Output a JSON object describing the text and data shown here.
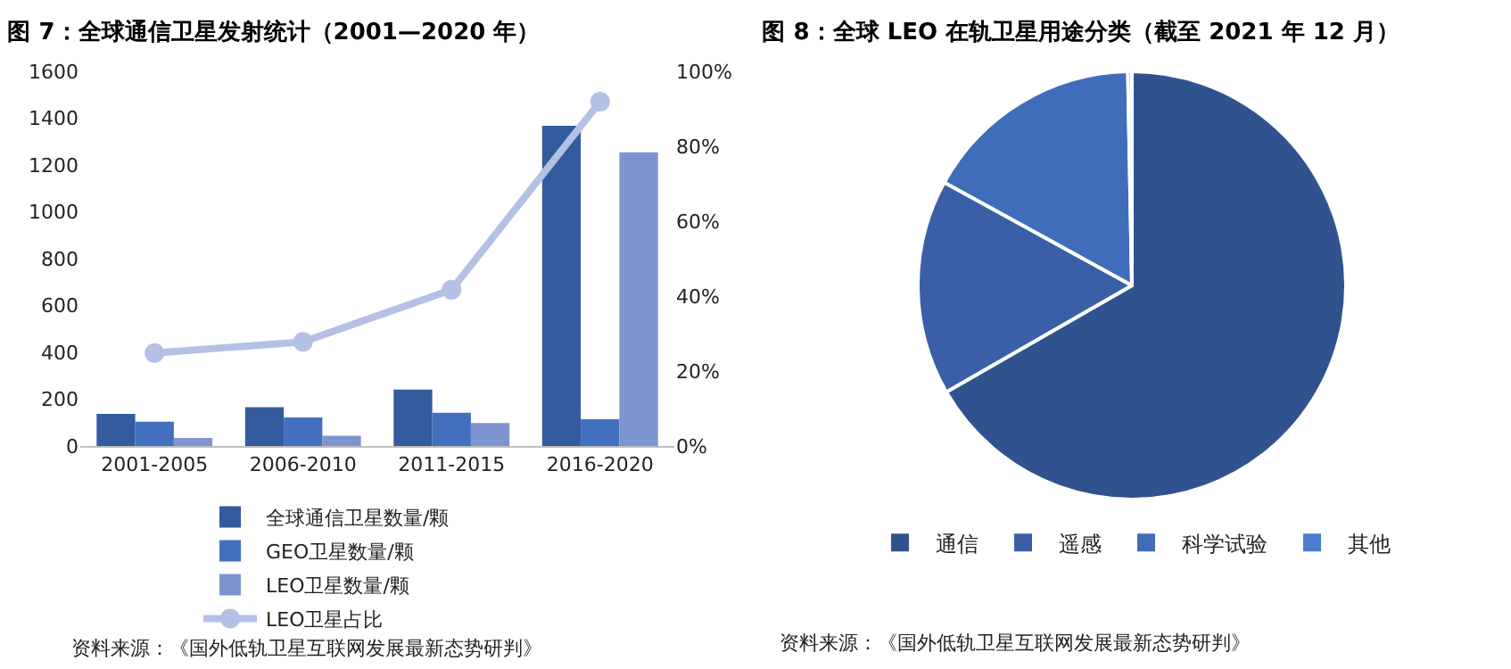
{
  "chart_data": [
    {
      "type": "bar",
      "title": "图 7：全球通信卫星发射统计（2001—2020 年）",
      "categories": [
        "2001-2005",
        "2006-2010",
        "2011-2015",
        "2016-2020"
      ],
      "series": [
        {
          "name": "全球通信卫星数量/颗",
          "color": "#345b9e",
          "values": [
            137,
            166,
            241,
            1368
          ]
        },
        {
          "name": "GEO卫星数量/颗",
          "color": "#4270be",
          "values": [
            104,
            122,
            142,
            114
          ]
        },
        {
          "name": "LEO卫星数量/颗",
          "color": "#7d94cf",
          "values": [
            34,
            44,
            98,
            1254
          ]
        },
        {
          "name": "LEO卫星占比",
          "type": "line",
          "axis": "y2",
          "color": "#b4c0e4",
          "marker": "circle",
          "values": [
            24.8,
            27.8,
            41.7,
            91.9
          ]
        }
      ],
      "ylim": [
        0,
        1600
      ],
      "yticks": [
        0,
        200,
        400,
        600,
        800,
        1000,
        1200,
        1400,
        1600
      ],
      "y2lim": [
        0,
        100
      ],
      "y2ticks": [
        {
          "value": 0,
          "label": "0%"
        },
        {
          "value": 20,
          "label": "20%"
        },
        {
          "value": 40,
          "label": "40%"
        },
        {
          "value": 60,
          "label": "60%"
        },
        {
          "value": 80,
          "label": "80%"
        },
        {
          "value": 100,
          "label": "100%"
        }
      ],
      "grid": false,
      "legend": "bottom",
      "annotations": [
        "资料来源：《国外低轨卫星互联网发展最新态势研判》"
      ]
    },
    {
      "type": "pie",
      "title": "图 8：全球 LEO 在轨卫星用途分类（截至 2021 年 12 月）",
      "categories": [
        "通信",
        "遥感",
        "科学试验",
        "其他"
      ],
      "values": [
        66.7,
        16.3,
        16.7,
        0.3
      ],
      "colors": [
        "#30528f",
        "#3a5fa6",
        "#406dba",
        "#4a7bd0"
      ],
      "legend": "bottom",
      "annotations": [
        "资料来源：《国外低轨卫星互联网发展最新态势研判》"
      ]
    }
  ]
}
